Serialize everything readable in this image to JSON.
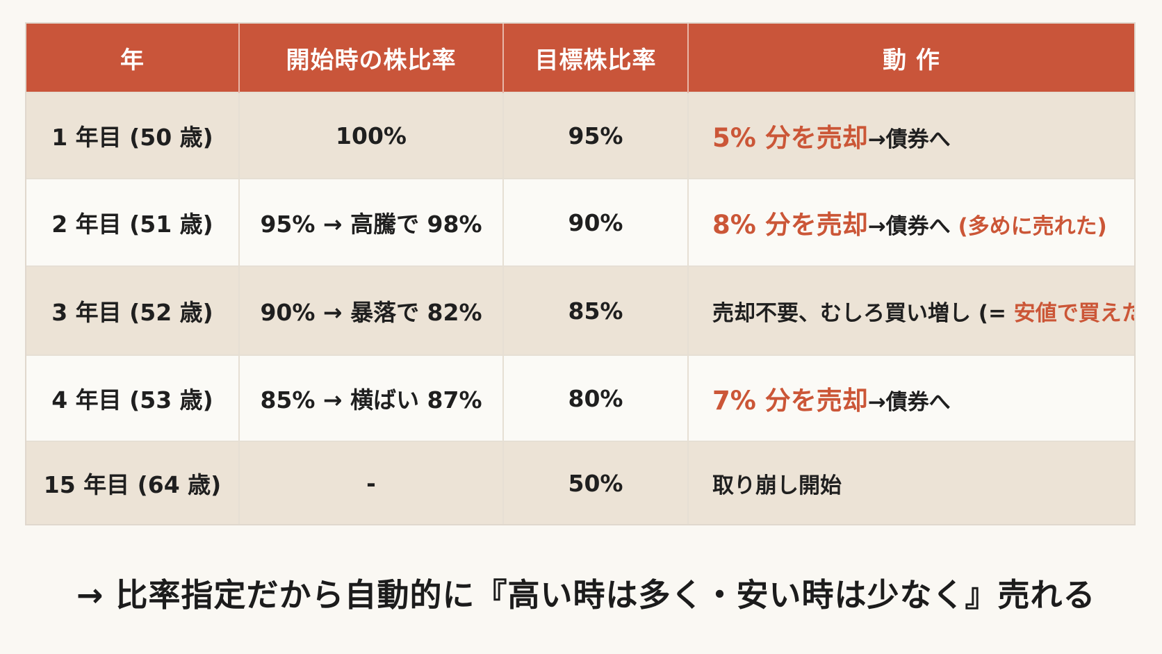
{
  "header": {
    "col_year": "年",
    "col_start_ratio": "開始時の株比率",
    "col_target_ratio": "目標株比率",
    "col_action": "動 作"
  },
  "rows": [
    {
      "year": "1 年目 (50 歳)",
      "start_ratio": "100%",
      "target_ratio": "95%",
      "action_highlight": "5% 分を売却",
      "action_rest": "→債券へ",
      "action_note": ""
    },
    {
      "year": "2 年目 (51 歳)",
      "start_ratio": "95% → 高騰で 98%",
      "target_ratio": "90%",
      "action_highlight": "8% 分を売却",
      "action_rest": "→債券へ ",
      "action_note": "(多めに売れた)"
    },
    {
      "year": "3 年目 (52 歳)",
      "start_ratio": "90% → 暴落で 82%",
      "target_ratio": "85%",
      "action_plain": "売却不要、むしろ買い増し (= ",
      "action_note": "安値で買えた)"
    },
    {
      "year": "4 年目 (53 歳)",
      "start_ratio": "85% → 横ばい 87%",
      "target_ratio": "80%",
      "action_highlight": "7% 分を売却",
      "action_rest": "→債券へ",
      "action_note": ""
    },
    {
      "year": "15 年目 (64 歳)",
      "start_ratio": "-",
      "target_ratio": "50%",
      "action_plain": "取り崩し開始"
    }
  ],
  "conclusion": "→ 比率指定だから自動的に『高い時は多く・安い時は少なく』売れる",
  "colors": {
    "accent": "#c9553a",
    "highlight_text": "#cb5637",
    "row_shaded": "#ece3d6",
    "row_plain": "#fbfaf6",
    "background": "#faf8f3"
  }
}
